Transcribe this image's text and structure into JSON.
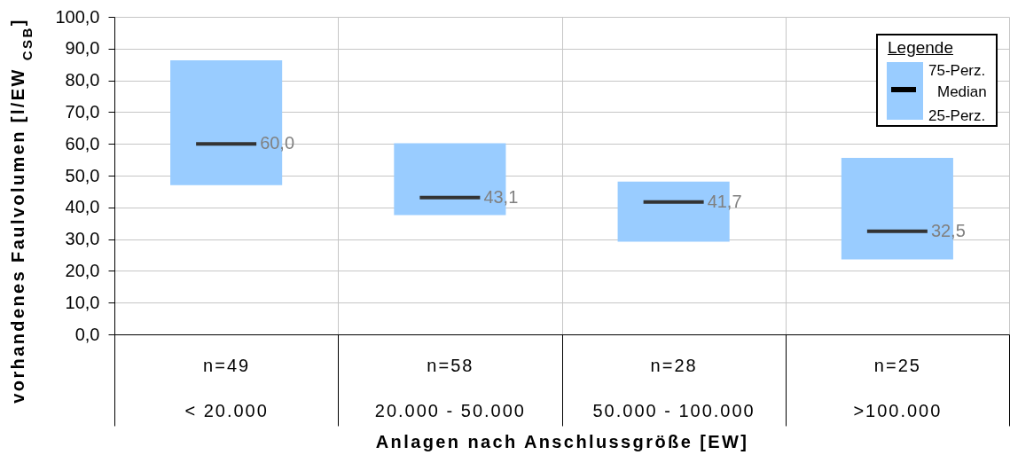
{
  "chart_data": {
    "type": "box",
    "ylabel": "vorhandenes Faulvolumen [l/EW $_{CSB}$]",
    "xlabel": "Anlagen nach Anschlussgröße [EW]",
    "categories": [
      "n=49\n< 20.000",
      "n=58\n20.000 - 50.000",
      "n=28\n50.000 - 100.000",
      "n=25\n>100.000"
    ],
    "boxes": [
      {
        "low": 47.0,
        "q1": 47.0,
        "median": 60.0,
        "q3": 86.3,
        "high": 86.3
      },
      {
        "low": 37.6,
        "q1": 37.6,
        "median": 43.1,
        "q3": 60.2,
        "high": 60.2
      },
      {
        "low": 29.2,
        "q1": 29.2,
        "median": 41.7,
        "q3": 48.1,
        "high": 48.1
      },
      {
        "low": 23.6,
        "q1": 23.6,
        "median": 32.5,
        "q3": 55.6,
        "high": 55.6
      }
    ],
    "value_labels": [
      "60,0",
      "43,1",
      "41,7",
      "32,5"
    ],
    "color": "#99ccff",
    "ylim": [
      0,
      100
    ],
    "yticks": [
      {
        "value": 0,
        "label": "0,0"
      },
      {
        "value": 10,
        "label": "10,0"
      },
      {
        "value": 20,
        "label": "20,0"
      },
      {
        "value": 30,
        "label": "30,0"
      },
      {
        "value": 40,
        "label": "40,0"
      },
      {
        "value": 50,
        "label": "50,0"
      },
      {
        "value": 60,
        "label": "60,0"
      },
      {
        "value": 70,
        "label": "70,0"
      },
      {
        "value": 80,
        "label": "80,0"
      },
      {
        "value": 90,
        "label": "90,0"
      },
      {
        "value": 100,
        "label": "100,0"
      }
    ],
    "grid": true,
    "legend_title": "Legende",
    "annotations": [
      "75-Perz.",
      "Median",
      "25-Perz."
    ]
  }
}
